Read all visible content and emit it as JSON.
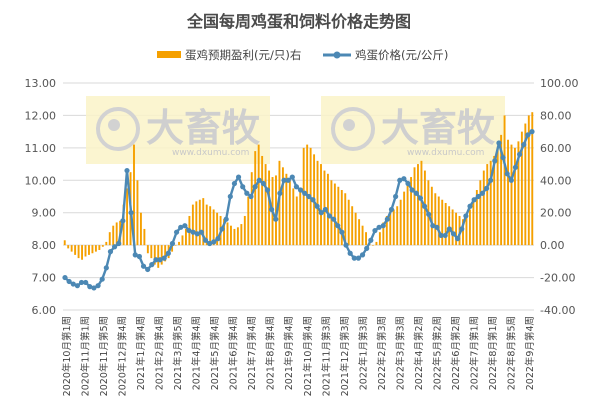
{
  "chart_data": {
    "type": "bar+line",
    "title": "全国每周鸡蛋和饲料价格走势图",
    "legend": {
      "bar_label": "蛋鸡预期盈利(元/只)右",
      "line_label": "鸡蛋价格(元/公斤)",
      "placement": "top-center"
    },
    "colors": {
      "bar": "#f5a000",
      "line": "#4c88b4",
      "title": "#4a4a4a"
    },
    "y_left": {
      "min": 6,
      "max": 13,
      "step": 1,
      "ticks": [
        "6.00",
        "7.00",
        "8.00",
        "9.00",
        "10.00",
        "11.00",
        "12.00",
        "13.00"
      ]
    },
    "y_right": {
      "min": -40,
      "max": 100,
      "step": 20,
      "ticks": [
        "-40.00",
        "-20.00",
        "0.00",
        "20.00",
        "40.00",
        "60.00",
        "80.00",
        "100.00"
      ]
    },
    "grid": true,
    "x_labels": [
      "2020年10月第1周",
      "2020年11月第1周",
      "2020年11月第5周",
      "2020年12月第4周",
      "2021年1月第4周",
      "2021年2月第4周",
      "2021年3月第5周",
      "2021年4月第4周",
      "2021年5月第4周",
      "2021年6月第4周",
      "2021年7月第4周",
      "2021年8月第4周",
      "2021年9月第4周",
      "2021年10月第4周",
      "2021年11月第3周",
      "2021年12月第3周",
      "2022年1月第3周",
      "2022年2月第3周",
      "2022年3月第3周",
      "2022年4月第2周",
      "2022年5月第2周",
      "2022年6月第2周",
      "2022年7月第1周",
      "2022年8月第1周",
      "2022年8月第5周",
      "2022年9月第4周"
    ],
    "series": [
      {
        "kind": "bar",
        "axis": "right",
        "values": [
          3,
          -2,
          -4,
          -6,
          -8,
          -9,
          -7,
          -6,
          -5,
          -4,
          -3,
          -1,
          2,
          8,
          12,
          14,
          15,
          25,
          35,
          45,
          62,
          40,
          20,
          10,
          -5,
          -8,
          -12,
          -14,
          -12,
          -10,
          -8,
          -4,
          0,
          2,
          6,
          10,
          18,
          25,
          27,
          28,
          29,
          25,
          24,
          22,
          20,
          18,
          16,
          14,
          12,
          10,
          11,
          13,
          18,
          30,
          45,
          58,
          62,
          55,
          50,
          46,
          42,
          43,
          52,
          48,
          44,
          40,
          35,
          30,
          35,
          60,
          62,
          60,
          56,
          52,
          50,
          46,
          44,
          40,
          38,
          36,
          34,
          32,
          28,
          24,
          20,
          16,
          12,
          8,
          4,
          0,
          2,
          8,
          14,
          18,
          20,
          22,
          24,
          28,
          33,
          38,
          42,
          48,
          50,
          52,
          46,
          40,
          36,
          32,
          30,
          28,
          26,
          24,
          22,
          20,
          18,
          16,
          18,
          22,
          28,
          34,
          40,
          46,
          50,
          52,
          55,
          60,
          68,
          80,
          65,
          62,
          60,
          64,
          70,
          75,
          80,
          82
        ]
      },
      {
        "kind": "line",
        "axis": "left",
        "values": [
          7.0,
          6.88,
          6.8,
          6.75,
          6.85,
          6.85,
          6.72,
          6.68,
          6.75,
          6.95,
          7.3,
          7.8,
          7.95,
          8.05,
          8.75,
          10.3,
          9.0,
          7.7,
          7.65,
          7.35,
          7.25,
          7.4,
          7.55,
          7.55,
          7.6,
          7.75,
          8.05,
          8.4,
          8.55,
          8.6,
          8.45,
          8.4,
          8.35,
          8.4,
          8.15,
          8.05,
          8.1,
          8.2,
          8.5,
          8.8,
          9.5,
          9.9,
          10.1,
          9.8,
          9.6,
          9.5,
          9.8,
          10.0,
          9.9,
          9.7,
          9.1,
          8.8,
          9.6,
          10.0,
          10.0,
          10.1,
          9.8,
          9.7,
          9.6,
          9.5,
          9.4,
          9.2,
          9.0,
          9.1,
          8.9,
          8.8,
          8.6,
          8.4,
          8.0,
          7.75,
          7.6,
          7.6,
          7.7,
          7.9,
          8.15,
          8.45,
          8.55,
          8.6,
          8.8,
          9.1,
          9.5,
          10.0,
          10.05,
          9.9,
          9.7,
          9.6,
          9.45,
          9.2,
          8.95,
          8.6,
          8.55,
          8.3,
          8.3,
          8.5,
          8.35,
          8.2,
          8.5,
          8.9,
          9.2,
          9.4,
          9.5,
          9.6,
          9.75,
          10.0,
          10.6,
          11.15,
          10.7,
          10.2,
          10.0,
          10.4,
          10.8,
          11.1,
          11.4,
          11.5
        ]
      }
    ]
  },
  "watermark": {
    "brand": "大畜牧",
    "site": "www.dxumu.com"
  }
}
